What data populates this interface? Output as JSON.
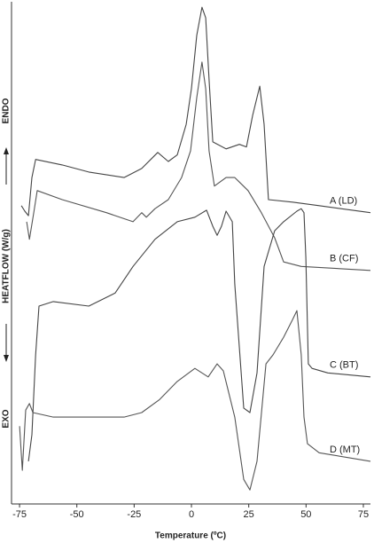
{
  "chart_data": {
    "type": "line",
    "xlabel": "Temperature (ºC)",
    "ylabel": "HEATFLOW (W/g)",
    "annotations": [
      "ENDO",
      "EXO"
    ],
    "xlim": [
      -78.5,
      78.1
    ],
    "xticks": [
      -75,
      -50,
      -25,
      0,
      25,
      50,
      75
    ],
    "ylim": [
      0,
      100
    ],
    "series": [
      {
        "name": "A (LD)",
        "color": "#444444",
        "x": [
          -74.2,
          -72.7,
          -71.1,
          -69.6,
          -68.0,
          -56.4,
          -44.8,
          -29.4,
          -21.7,
          -14.7,
          -10.1,
          -6.2,
          -2.3,
          0.0,
          2.3,
          4.6,
          6.2,
          7.7,
          9.3,
          15.1,
          20.9,
          24.0,
          26.7,
          29.8,
          31.7,
          33.6,
          44.1,
          55.7,
          78.1
        ],
        "values": [
          59.4,
          58.3,
          57.4,
          65.0,
          68.6,
          67.5,
          66.1,
          65.0,
          66.8,
          70.0,
          68.2,
          69.5,
          75.6,
          82.7,
          93.3,
          98.9,
          96.8,
          84.5,
          72.1,
          70.7,
          71.6,
          71.1,
          77.4,
          83.2,
          75.6,
          60.6,
          60.1,
          59.4,
          58.0
        ]
      },
      {
        "name": "B (CF)",
        "color": "#555555",
        "x": [
          -71.9,
          -70.7,
          -68.8,
          -67.3,
          -56.4,
          -37.1,
          -25.5,
          -21.7,
          -19.7,
          -15.9,
          -10.1,
          -4.3,
          -0.4,
          2.3,
          4.6,
          6.2,
          7.7,
          10.0,
          15.1,
          18.9,
          20.9,
          24.7,
          30.5,
          36.3,
          40.2,
          47.9,
          78.1
        ],
        "values": [
          56.2,
          52.7,
          58.0,
          62.4,
          60.6,
          58.0,
          56.2,
          58.0,
          57.1,
          58.8,
          60.6,
          65.0,
          70.3,
          80.9,
          88.0,
          82.7,
          70.3,
          63.3,
          65.0,
          65.0,
          64.1,
          62.4,
          58.0,
          53.0,
          48.2,
          47.3,
          46.5
        ]
      },
      {
        "name": "C (BT)",
        "color": "#444444",
        "x": [
          -71.1,
          -69.6,
          -68.0,
          -66.5,
          -60.3,
          -44.8,
          -33.3,
          -25.5,
          -15.9,
          -6.2,
          1.5,
          6.6,
          9.3,
          11.2,
          13.1,
          15.1,
          17.8,
          18.9,
          22.8,
          25.5,
          28.6,
          31.7,
          36.3,
          40.2,
          46.0,
          47.9,
          49.1,
          49.9,
          51.0,
          52.6,
          59.5,
          78.1
        ],
        "values": [
          8.5,
          13.8,
          29.7,
          39.4,
          40.3,
          39.4,
          42.0,
          47.3,
          52.7,
          56.2,
          57.1,
          58.5,
          55.3,
          53.5,
          55.3,
          58.3,
          56.2,
          43.8,
          19.1,
          18.2,
          26.1,
          47.3,
          54.4,
          56.2,
          58.3,
          58.8,
          58.0,
          49.1,
          27.9,
          27.0,
          26.1,
          25.3
        ]
      },
      {
        "name": "D (MT)",
        "color": "#555555",
        "x": [
          -75.0,
          -73.8,
          -72.3,
          -70.7,
          -69.2,
          -60.3,
          -44.8,
          -29.4,
          -21.7,
          -13.9,
          -6.2,
          1.5,
          7.3,
          11.2,
          13.9,
          18.9,
          22.8,
          25.5,
          28.6,
          32.5,
          35.6,
          40.2,
          44.1,
          46.0,
          47.9,
          49.1,
          50.6,
          55.7,
          78.1
        ],
        "values": [
          15.5,
          6.7,
          18.7,
          20.0,
          18.2,
          17.3,
          17.3,
          17.3,
          18.2,
          20.8,
          24.4,
          27.0,
          25.3,
          27.9,
          26.5,
          17.3,
          4.9,
          2.8,
          8.5,
          27.9,
          29.7,
          33.2,
          36.7,
          38.5,
          29.7,
          17.3,
          12.0,
          10.2,
          8.5
        ]
      }
    ]
  }
}
